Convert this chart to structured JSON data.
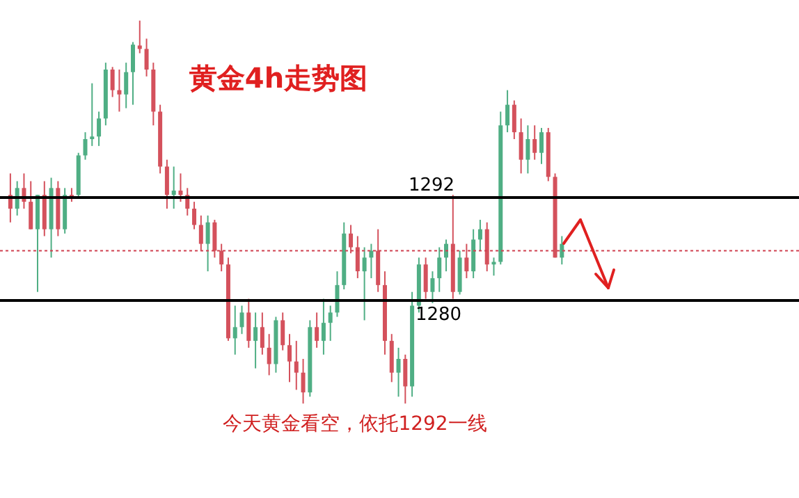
{
  "chart_data": {
    "type": "candlestick",
    "title": "黄金4h走势图",
    "annotations": [
      "今天黄金看空，依托1292一线"
    ],
    "categories": [
      null,
      null,
      null,
      null,
      null,
      null,
      null,
      null,
      null,
      null,
      null,
      null,
      null,
      null,
      null,
      null,
      null,
      null,
      null,
      null,
      null,
      null,
      null,
      null,
      null,
      null,
      null,
      null,
      null,
      null,
      null,
      null,
      null,
      null,
      null,
      null,
      null,
      null,
      null,
      null,
      null,
      null,
      null,
      null,
      null,
      null,
      null,
      null,
      null,
      null,
      null,
      null,
      null,
      null,
      null,
      null,
      null,
      null,
      null,
      null,
      null,
      null,
      null,
      null,
      null,
      null,
      null,
      null,
      null,
      null,
      null,
      null,
      null,
      null,
      null,
      null,
      null,
      null,
      null,
      null,
      null,
      null
    ],
    "ohlc": [
      [
        1292.3,
        1294.8,
        1289.1,
        1290.7
      ],
      [
        1290.7,
        1293.9,
        1289.9,
        1293.1
      ],
      [
        1293.1,
        1294.8,
        1290.7,
        1291.5
      ],
      [
        1291.5,
        1293.9,
        1288.3,
        1288.3
      ],
      [
        1288.3,
        1292.3,
        1281.0,
        1292.3
      ],
      [
        1292.3,
        1293.9,
        1287.5,
        1288.3
      ],
      [
        1288.3,
        1294.3,
        1285.0,
        1293.1
      ],
      [
        1293.1,
        1293.9,
        1287.5,
        1288.3
      ],
      [
        1288.3,
        1293.1,
        1287.8,
        1292.3
      ],
      [
        1292.3,
        1293.1,
        1291.5,
        1292.1
      ],
      [
        1292.3,
        1297.2,
        1292.0,
        1296.9
      ],
      [
        1296.9,
        1299.6,
        1296.4,
        1298.8
      ],
      [
        1298.8,
        1305.3,
        1298.0,
        1299.1
      ],
      [
        1299.1,
        1302.0,
        1298.0,
        1301.2
      ],
      [
        1301.2,
        1307.7,
        1300.4,
        1306.9
      ],
      [
        1306.9,
        1307.2,
        1303.7,
        1304.5
      ],
      [
        1304.5,
        1306.9,
        1302.0,
        1304.0
      ],
      [
        1304.0,
        1307.7,
        1302.4,
        1306.6
      ],
      [
        1306.6,
        1310.1,
        1302.8,
        1309.8
      ],
      [
        1309.7,
        1312.6,
        1308.8,
        1309.3
      ],
      [
        1309.3,
        1310.5,
        1306.1,
        1306.9
      ],
      [
        1306.9,
        1307.7,
        1300.4,
        1302.0
      ],
      [
        1302.0,
        1302.8,
        1294.8,
        1295.6
      ],
      [
        1295.6,
        1296.4,
        1290.7,
        1292.3
      ],
      [
        1292.3,
        1295.6,
        1290.7,
        1292.8
      ],
      [
        1292.8,
        1294.8,
        1291.5,
        1292.3
      ],
      [
        1292.3,
        1293.1,
        1289.9,
        1290.7
      ],
      [
        1290.7,
        1291.5,
        1288.3,
        1288.8
      ],
      [
        1288.8,
        1289.9,
        1285.8,
        1286.6
      ],
      [
        1286.6,
        1289.9,
        1283.4,
        1289.1
      ],
      [
        1289.1,
        1289.4,
        1285.0,
        1285.8
      ],
      [
        1285.8,
        1286.6,
        1283.4,
        1284.2
      ],
      [
        1284.2,
        1285.0,
        1275.3,
        1275.6
      ],
      [
        1275.6,
        1279.4,
        1273.7,
        1276.9
      ],
      [
        1276.9,
        1279.4,
        1276.1,
        1278.6
      ],
      [
        1278.6,
        1280.2,
        1274.5,
        1275.3
      ],
      [
        1275.3,
        1278.6,
        1272.1,
        1276.9
      ],
      [
        1276.9,
        1278.6,
        1273.7,
        1274.5
      ],
      [
        1274.5,
        1276.1,
        1271.3,
        1272.6
      ],
      [
        1272.6,
        1278.1,
        1271.6,
        1277.7
      ],
      [
        1277.7,
        1278.6,
        1274.2,
        1274.8
      ],
      [
        1274.8,
        1276.1,
        1270.5,
        1272.9
      ],
      [
        1272.9,
        1275.3,
        1269.6,
        1271.6
      ],
      [
        1271.6,
        1273.2,
        1268.0,
        1269.3
      ],
      [
        1269.3,
        1277.7,
        1268.8,
        1276.9
      ],
      [
        1276.9,
        1278.6,
        1274.5,
        1275.3
      ],
      [
        1275.3,
        1280.2,
        1273.7,
        1277.4
      ],
      [
        1277.4,
        1279.4,
        1275.3,
        1278.6
      ],
      [
        1278.6,
        1283.4,
        1278.1,
        1281.8
      ],
      [
        1281.8,
        1289.1,
        1281.3,
        1287.8
      ],
      [
        1287.8,
        1288.8,
        1285.5,
        1286.2
      ],
      [
        1286.2,
        1287.5,
        1282.6,
        1283.4
      ],
      [
        1283.4,
        1286.2,
        1277.7,
        1285.0
      ],
      [
        1285.0,
        1286.6,
        1282.6,
        1285.8
      ],
      [
        1285.8,
        1288.3,
        1281.0,
        1281.8
      ],
      [
        1281.8,
        1283.4,
        1273.7,
        1275.3
      ],
      [
        1275.3,
        1276.1,
        1270.5,
        1271.6
      ],
      [
        1271.6,
        1274.5,
        1268.8,
        1273.2
      ],
      [
        1273.2,
        1273.7,
        1268.0,
        1270.0
      ],
      [
        1270.0,
        1281.0,
        1268.8,
        1279.4
      ],
      [
        1279.4,
        1285.0,
        1278.6,
        1284.2
      ],
      [
        1284.2,
        1285.0,
        1280.2,
        1281.0
      ],
      [
        1281.0,
        1283.4,
        1279.7,
        1282.6
      ],
      [
        1282.6,
        1286.2,
        1281.0,
        1285.0
      ],
      [
        1285.0,
        1287.1,
        1283.4,
        1286.6
      ],
      [
        1286.6,
        1292.3,
        1280.2,
        1281.0
      ],
      [
        1281.0,
        1285.8,
        1280.7,
        1285.0
      ],
      [
        1285.0,
        1286.6,
        1282.6,
        1283.4
      ],
      [
        1283.4,
        1288.3,
        1282.6,
        1287.1
      ],
      [
        1287.1,
        1289.4,
        1285.8,
        1288.3
      ],
      [
        1288.3,
        1289.1,
        1283.4,
        1284.2
      ],
      [
        1284.2,
        1285.0,
        1282.9,
        1284.5
      ],
      [
        1284.5,
        1302.0,
        1284.2,
        1300.4
      ],
      [
        1300.4,
        1304.5,
        1299.6,
        1302.8
      ],
      [
        1302.8,
        1303.3,
        1298.8,
        1299.6
      ],
      [
        1299.6,
        1301.2,
        1294.8,
        1296.4
      ],
      [
        1296.4,
        1300.4,
        1294.8,
        1298.8
      ],
      [
        1298.8,
        1300.4,
        1296.4,
        1297.2
      ],
      [
        1297.2,
        1300.1,
        1295.9,
        1299.6
      ],
      [
        1299.6,
        1300.1,
        1293.9,
        1294.4
      ],
      [
        1294.4,
        1294.8,
        1285.0,
        1285.0
      ],
      [
        1285.0,
        1287.5,
        1284.2,
        1286.6
      ]
    ],
    "colors": [
      "#d4515c",
      "#4fae84",
      "#d4515c",
      "#d4515c",
      "#4fae84",
      "#d4515c",
      "#4fae84",
      "#d4515c",
      "#4fae84",
      "#d4515c",
      "#4fae84",
      "#4fae84",
      "#4fae84",
      "#4fae84",
      "#4fae84",
      "#d4515c",
      "#d4515c",
      "#4fae84",
      "#4fae84",
      "#d4515c",
      "#d4515c",
      "#d4515c",
      "#d4515c",
      "#d4515c",
      "#4fae84",
      "#d4515c",
      "#d4515c",
      "#d4515c",
      "#d4515c",
      "#4fae84",
      "#d4515c",
      "#d4515c",
      "#d4515c",
      "#4fae84",
      "#4fae84",
      "#d4515c",
      "#4fae84",
      "#d4515c",
      "#d4515c",
      "#4fae84",
      "#d4515c",
      "#d4515c",
      "#d4515c",
      "#d4515c",
      "#4fae84",
      "#d4515c",
      "#4fae84",
      "#4fae84",
      "#4fae84",
      "#4fae84",
      "#d4515c",
      "#d4515c",
      "#4fae84",
      "#4fae84",
      "#d4515c",
      "#d4515c",
      "#d4515c",
      "#4fae84",
      "#d4515c",
      "#4fae84",
      "#4fae84",
      "#d4515c",
      "#4fae84",
      "#4fae84",
      "#4fae84",
      "#d4515c",
      "#4fae84",
      "#d4515c",
      "#4fae84",
      "#4fae84",
      "#d4515c",
      "#4fae84",
      "#4fae84",
      "#4fae84",
      "#d4515c",
      "#d4515c",
      "#4fae84",
      "#d4515c",
      "#4fae84",
      "#d4515c",
      "#d4515c",
      "#4fae84"
    ],
    "ylim": [
      1257,
      1315
    ],
    "ref_lines": [
      {
        "axis": "y",
        "value": 1292,
        "label": "1292",
        "color": "#000000"
      },
      {
        "axis": "y",
        "value": 1280,
        "label": "1280",
        "color": "#000000"
      },
      {
        "axis": "y",
        "value": 1285.8,
        "color": "#d04050",
        "line_style": "dotted"
      }
    ],
    "tick_labels": false
  }
}
